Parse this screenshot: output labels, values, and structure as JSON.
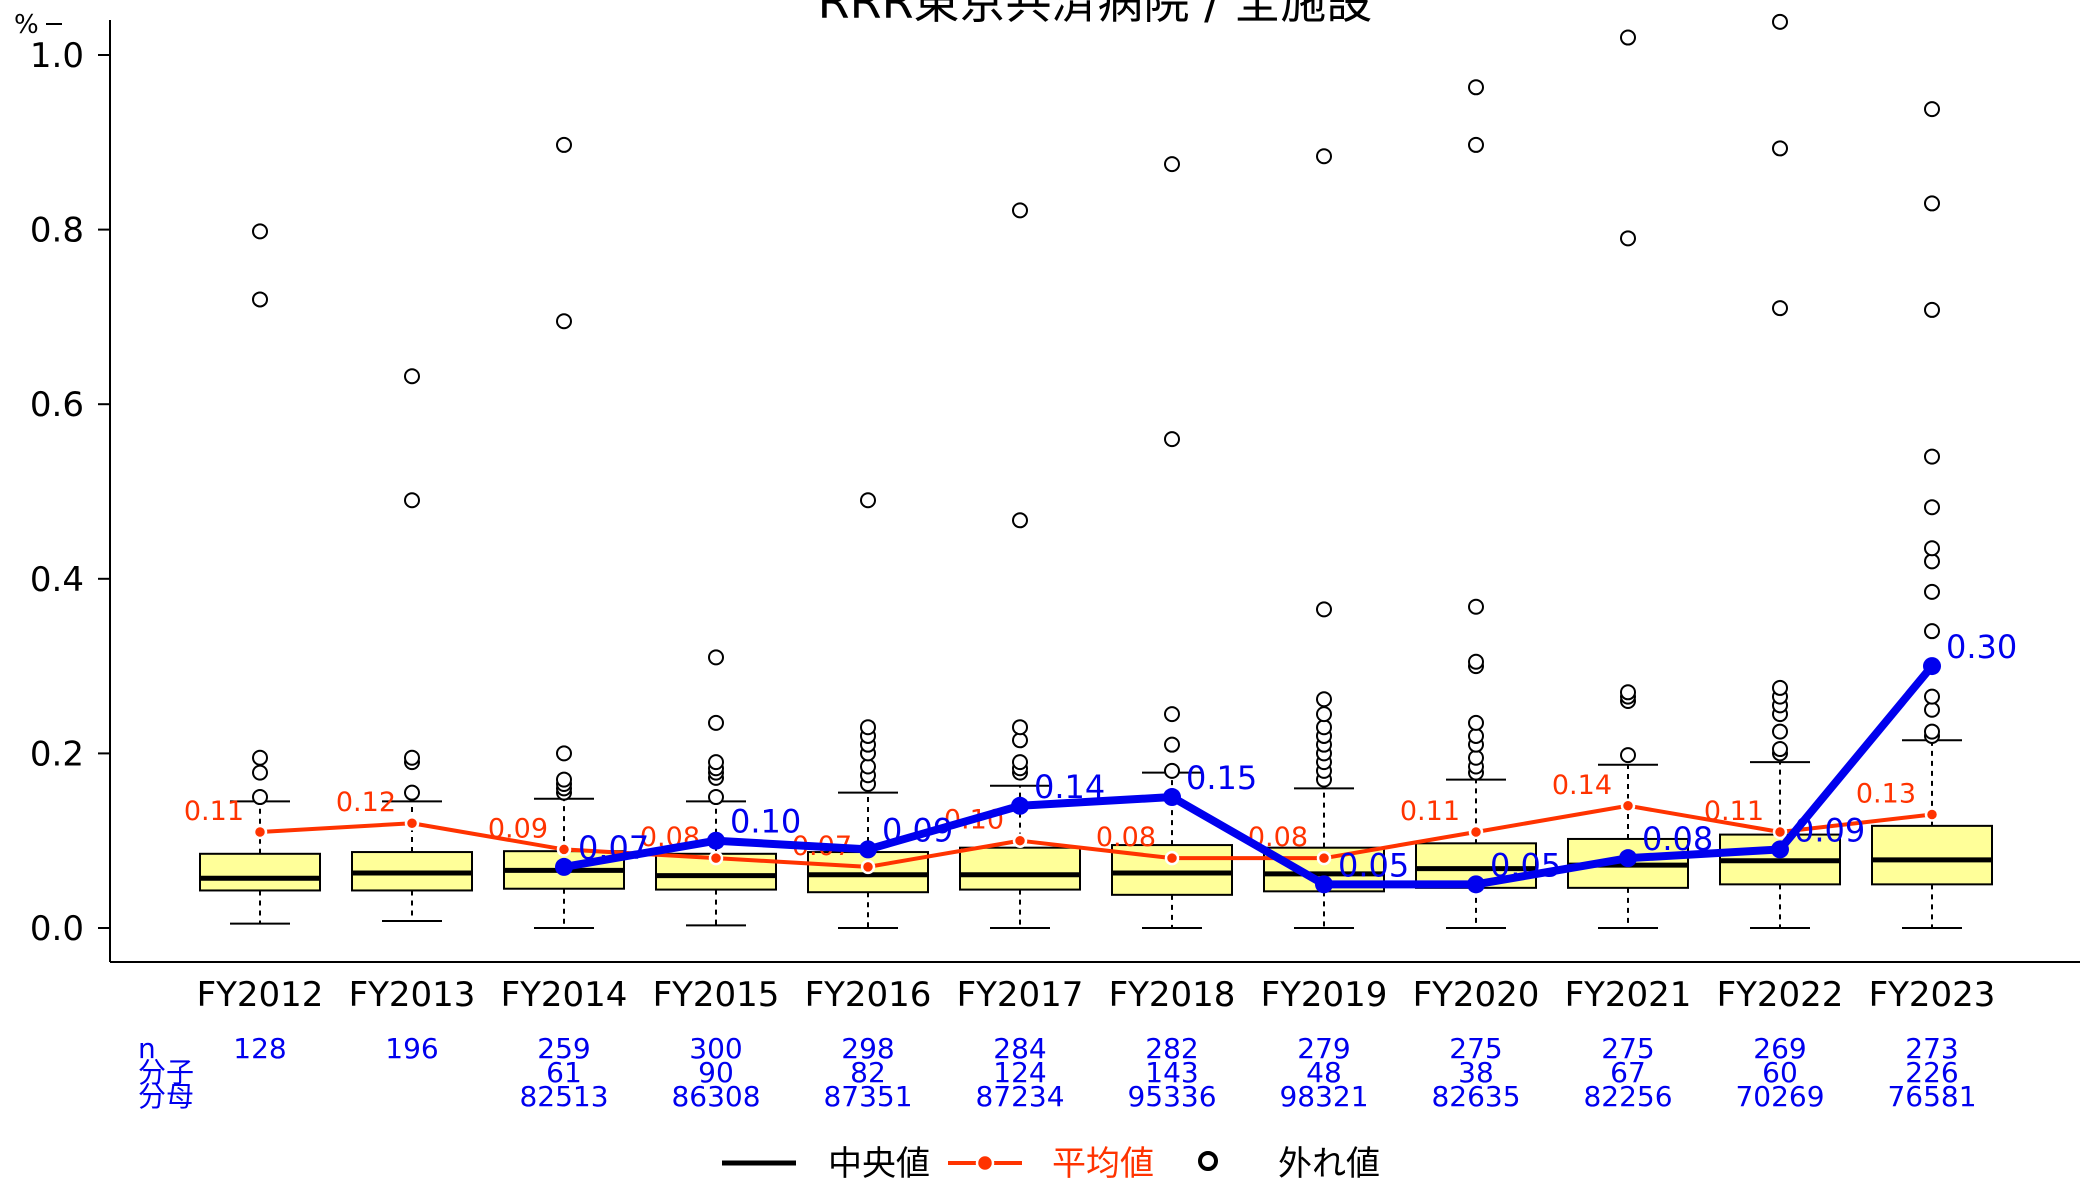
{
  "chart_data": {
    "type": "box",
    "title": "RRR東京共済病院 / 全施設",
    "ylabel": "%",
    "ylim": [
      0,
      1.0
    ],
    "yticks": [
      "0.0",
      "0.2",
      "0.4",
      "0.6",
      "0.8",
      "1.0"
    ],
    "categories": [
      "FY2012",
      "FY2013",
      "FY2014",
      "FY2015",
      "FY2016",
      "FY2017",
      "FY2018",
      "FY2019",
      "FY2020",
      "FY2021",
      "FY2022",
      "FY2023"
    ],
    "box_fill": "#ffff99",
    "boxes": [
      {
        "low": 0.005,
        "q1": 0.043,
        "median": 0.057,
        "q3": 0.085,
        "high": 0.145,
        "outliers": [
          0.15,
          0.178,
          0.195,
          0.72,
          0.798
        ]
      },
      {
        "low": 0.008,
        "q1": 0.043,
        "median": 0.063,
        "q3": 0.087,
        "high": 0.145,
        "outliers": [
          0.155,
          0.19,
          0.195,
          0.49,
          0.632
        ]
      },
      {
        "low": 0.0,
        "q1": 0.045,
        "median": 0.066,
        "q3": 0.088,
        "high": 0.148,
        "outliers": [
          0.155,
          0.16,
          0.165,
          0.17,
          0.2,
          0.695,
          0.897
        ]
      },
      {
        "low": 0.003,
        "q1": 0.044,
        "median": 0.06,
        "q3": 0.085,
        "high": 0.145,
        "outliers": [
          0.15,
          0.172,
          0.178,
          0.183,
          0.19,
          0.235,
          0.31
        ]
      },
      {
        "low": 0.0,
        "q1": 0.041,
        "median": 0.061,
        "q3": 0.087,
        "high": 0.155,
        "outliers": [
          0.165,
          0.175,
          0.185,
          0.2,
          0.21,
          0.22,
          0.23,
          0.49
        ]
      },
      {
        "low": 0.0,
        "q1": 0.044,
        "median": 0.061,
        "q3": 0.092,
        "high": 0.163,
        "outliers": [
          0.178,
          0.183,
          0.19,
          0.215,
          0.23,
          0.467,
          0.822
        ]
      },
      {
        "low": 0.0,
        "q1": 0.038,
        "median": 0.063,
        "q3": 0.095,
        "high": 0.178,
        "outliers": [
          0.18,
          0.21,
          0.245,
          0.56,
          0.875
        ]
      },
      {
        "low": 0.0,
        "q1": 0.042,
        "median": 0.062,
        "q3": 0.092,
        "high": 0.16,
        "outliers": [
          0.17,
          0.18,
          0.19,
          0.2,
          0.21,
          0.22,
          0.23,
          0.245,
          0.262,
          0.365,
          0.884
        ]
      },
      {
        "low": 0.0,
        "q1": 0.046,
        "median": 0.068,
        "q3": 0.097,
        "high": 0.17,
        "outliers": [
          0.178,
          0.185,
          0.195,
          0.21,
          0.22,
          0.235,
          0.3,
          0.305,
          0.368,
          0.897,
          0.963
        ]
      },
      {
        "low": 0.0,
        "q1": 0.046,
        "median": 0.072,
        "q3": 0.102,
        "high": 0.187,
        "outliers": [
          0.198,
          0.26,
          0.265,
          0.27,
          0.79,
          1.02
        ]
      },
      {
        "low": 0.0,
        "q1": 0.05,
        "median": 0.077,
        "q3": 0.107,
        "high": 0.19,
        "outliers": [
          0.2,
          0.205,
          0.225,
          0.245,
          0.255,
          0.265,
          0.275,
          0.71,
          0.893,
          1.038
        ]
      },
      {
        "low": 0.0,
        "q1": 0.05,
        "median": 0.078,
        "q3": 0.117,
        "high": 0.215,
        "outliers": [
          0.22,
          0.225,
          0.25,
          0.265,
          0.34,
          0.385,
          0.42,
          0.435,
          0.482,
          0.54,
          0.708,
          0.83,
          0.938
        ]
      }
    ],
    "series": [
      {
        "name": "平均値",
        "color": "#ff3300",
        "values": [
          0.11,
          0.12,
          0.09,
          0.08,
          0.07,
          0.1,
          0.08,
          0.08,
          0.11,
          0.14,
          0.11,
          0.13
        ],
        "labels": [
          "0.11",
          "0.12",
          "0.09",
          "0.08",
          "0.07",
          "0.10",
          "0.08",
          "0.08",
          "0.11",
          "0.14",
          "0.11",
          "0.13"
        ]
      },
      {
        "name": "",
        "color": "#0000ee",
        "values": [
          null,
          null,
          0.07,
          0.1,
          0.09,
          0.14,
          0.15,
          0.05,
          0.05,
          0.08,
          0.09,
          0.3
        ],
        "labels": [
          "",
          "",
          "0.07",
          "0.10",
          "0.09",
          "0.14",
          "0.15",
          "0.05",
          "0.05",
          "0.08",
          "0.09",
          "0.30"
        ]
      }
    ],
    "table": {
      "row_labels": [
        "n",
        "分子",
        "分母"
      ],
      "n": [
        "128",
        "196",
        "259",
        "300",
        "298",
        "284",
        "282",
        "279",
        "275",
        "275",
        "269",
        "273"
      ],
      "numerator": [
        "",
        "",
        "61",
        "90",
        "82",
        "124",
        "143",
        "48",
        "38",
        "67",
        "60",
        "226"
      ],
      "denominator": [
        "",
        "",
        "82513",
        "86308",
        "87351",
        "87234",
        "95336",
        "98321",
        "82635",
        "82256",
        "70269",
        "76581"
      ],
      "color": "#0000ee"
    },
    "legend": {
      "position": "bottom",
      "items": [
        {
          "label": "中央値",
          "color": "#000000"
        },
        {
          "label": "平均値",
          "color": "#ff3300"
        },
        {
          "label": "外れ値",
          "color": "#000000"
        }
      ]
    }
  }
}
